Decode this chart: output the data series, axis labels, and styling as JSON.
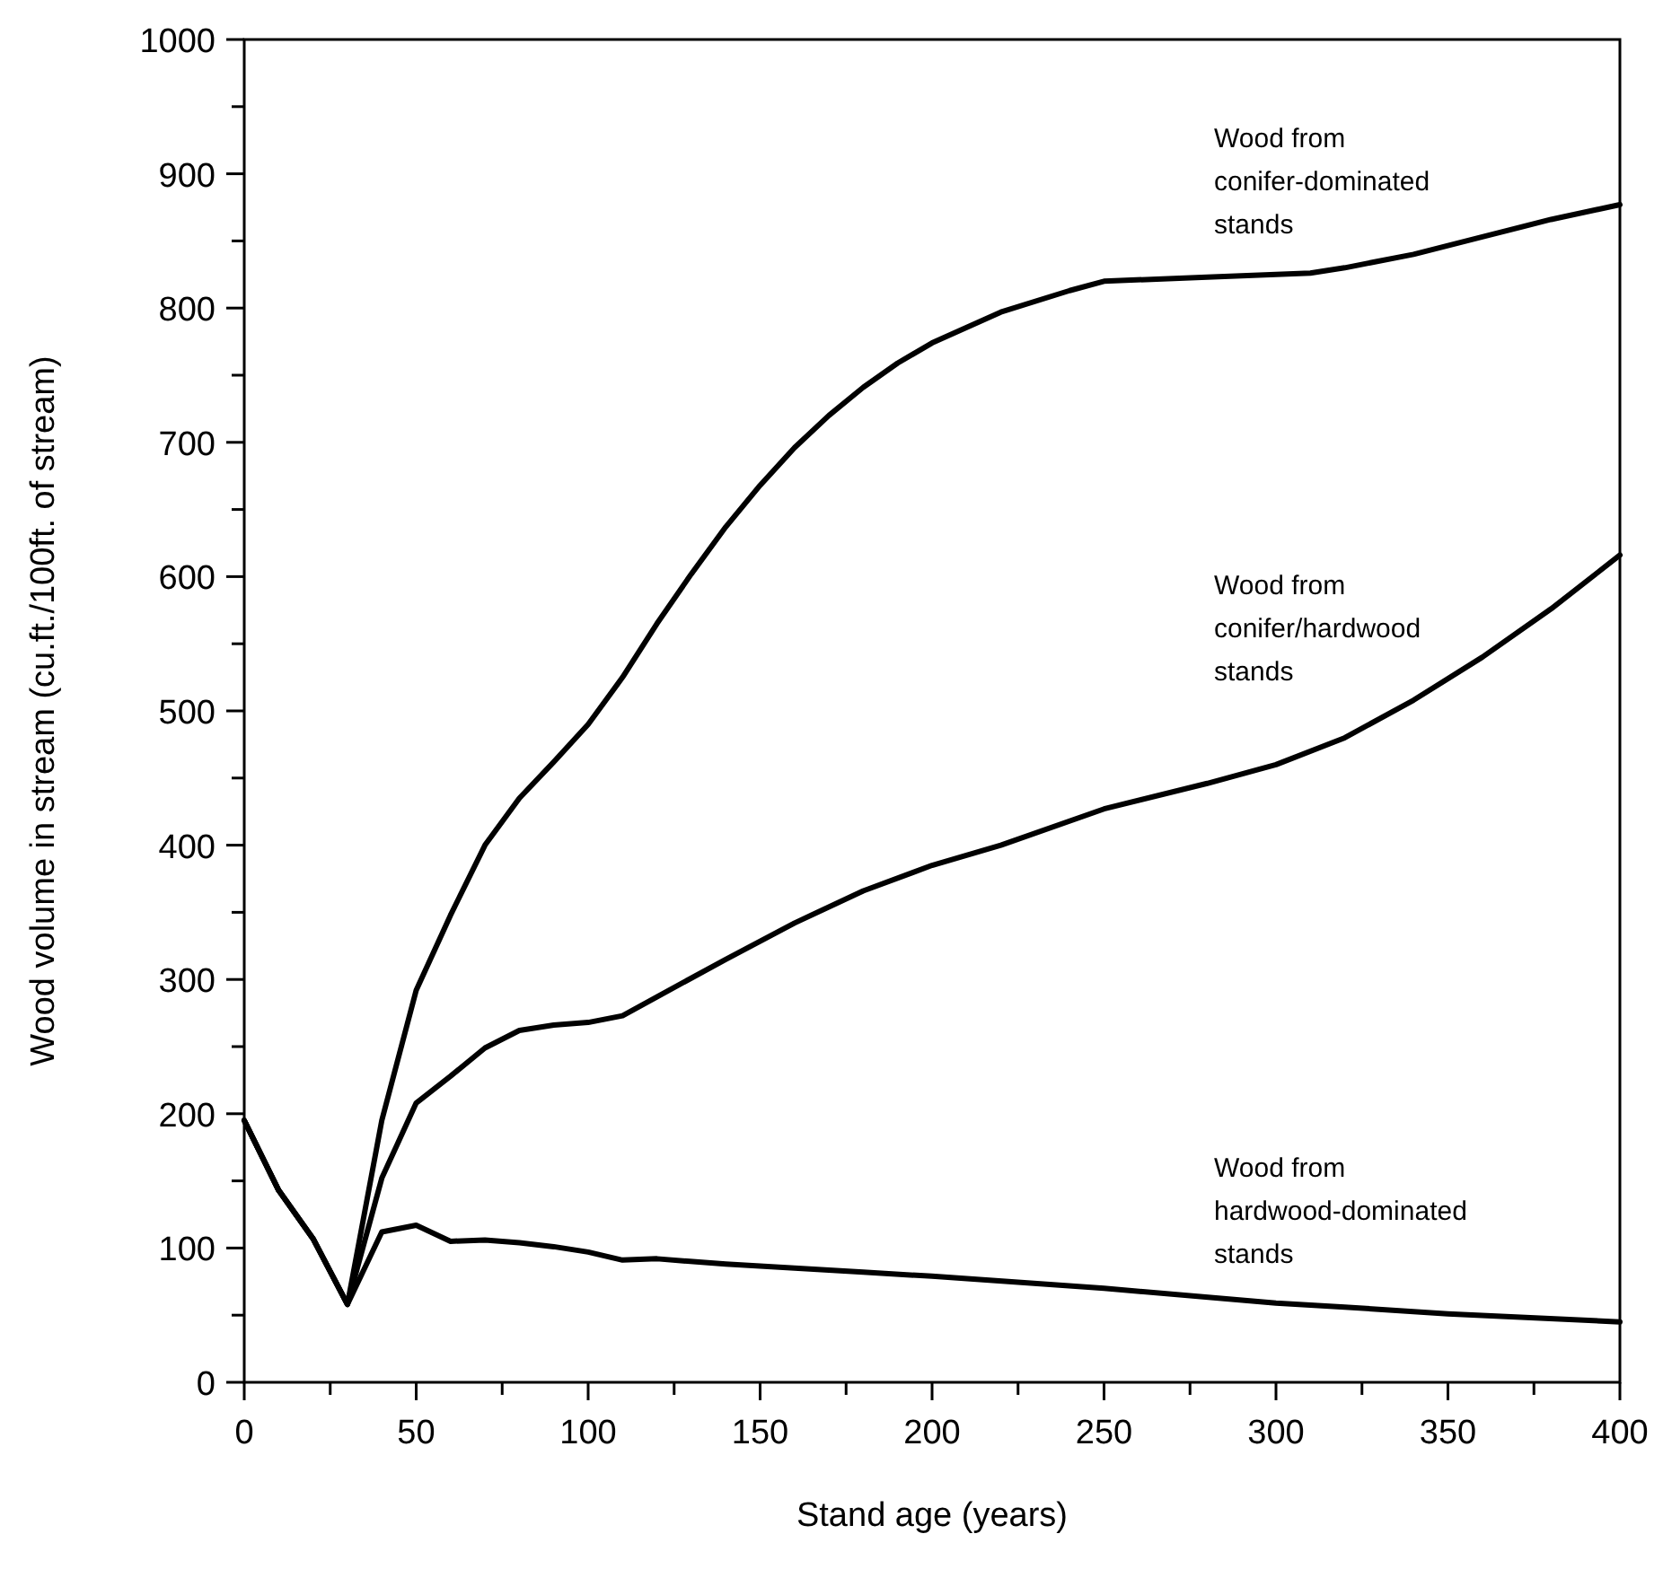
{
  "chart_data": {
    "type": "line",
    "xlabel": "Stand age (years)",
    "ylabel": "Wood volume in stream (cu.ft./100ft. of stream)",
    "xlim": [
      0,
      400
    ],
    "ylim": [
      0,
      1000
    ],
    "xticks": [
      0,
      {
        "value": 25,
        "label": null
      },
      50,
      {
        "value": 75,
        "label": null
      },
      100,
      {
        "value": 125,
        "label": null
      },
      150,
      {
        "value": 175,
        "label": null
      },
      200,
      {
        "value": 225,
        "label": null
      },
      250,
      {
        "value": 275,
        "label": null
      },
      300,
      {
        "value": 325,
        "label": null
      },
      350,
      {
        "value": 375,
        "label": null
      },
      400
    ],
    "yticks": [
      0,
      {
        "value": 50,
        "label": null
      },
      100,
      {
        "value": 150,
        "label": null
      },
      200,
      {
        "value": 250,
        "label": null
      },
      300,
      {
        "value": 350,
        "label": null
      },
      400,
      {
        "value": 450,
        "label": null
      },
      500,
      {
        "value": 550,
        "label": null
      },
      600,
      {
        "value": 650,
        "label": null
      },
      700,
      {
        "value": 750,
        "label": null
      },
      800,
      {
        "value": 850,
        "label": null
      },
      900,
      {
        "value": 950,
        "label": null
      },
      1000
    ],
    "grid": false,
    "marker": "none",
    "line_style": "solid",
    "series": [
      {
        "name": "Wood from\nconifer-dominated\nstands",
        "color": "#000000",
        "x": [
          0,
          10,
          20,
          30,
          40,
          50,
          60,
          70,
          80,
          90,
          100,
          110,
          120,
          130,
          140,
          150,
          160,
          170,
          180,
          190,
          200,
          220,
          240,
          250,
          280,
          310,
          320,
          340,
          360,
          380,
          400
        ],
        "values": [
          195,
          143,
          107,
          58,
          195,
          292,
          348,
          400,
          435,
          462,
          490,
          525,
          565,
          602,
          637,
          668,
          696,
          720,
          741,
          759,
          774,
          797,
          813,
          820,
          823,
          826,
          830,
          840,
          853,
          866,
          877
        ]
      },
      {
        "name": "Wood from\nconifer/hardwood\nstands",
        "color": "#000000",
        "x": [
          0,
          10,
          20,
          30,
          40,
          50,
          60,
          70,
          80,
          90,
          100,
          110,
          120,
          140,
          160,
          180,
          200,
          220,
          250,
          280,
          300,
          320,
          340,
          360,
          380,
          400
        ],
        "values": [
          195,
          143,
          107,
          58,
          152,
          208,
          228,
          249,
          262,
          266,
          268,
          273,
          287,
          315,
          342,
          366,
          385,
          400,
          427,
          446,
          460,
          480,
          508,
          540,
          576,
          616
        ]
      },
      {
        "name": "Wood from\nhardwood-dominated\nstands",
        "color": "#000000",
        "x": [
          0,
          10,
          20,
          30,
          40,
          50,
          60,
          70,
          80,
          90,
          100,
          110,
          120,
          140,
          160,
          180,
          200,
          250,
          300,
          320,
          350,
          400
        ],
        "values": [
          195,
          143,
          107,
          58,
          112,
          117,
          105,
          106,
          104,
          101,
          97,
          91,
          92,
          88,
          85,
          82,
          79,
          70,
          59,
          56,
          51,
          45
        ]
      }
    ]
  }
}
